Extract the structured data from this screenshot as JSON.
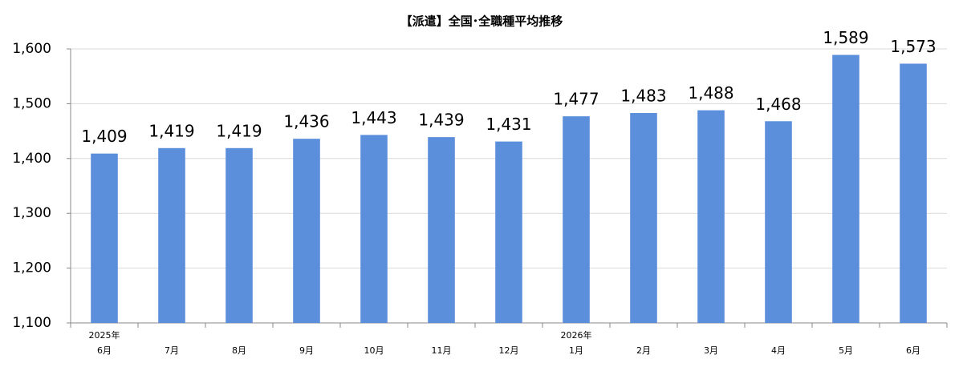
{
  "chart_data": {
    "type": "bar",
    "title": "【派遣】全国･全職種平均推移",
    "categories": [
      "6月",
      "7月",
      "8月",
      "9月",
      "10月",
      "11月",
      "12月",
      "1月",
      "2月",
      "3月",
      "4月",
      "5月",
      "6月"
    ],
    "category_years": [
      "2025年",
      null,
      null,
      null,
      null,
      null,
      null,
      "2026年",
      null,
      null,
      null,
      null,
      null
    ],
    "values": [
      1409,
      1419,
      1419,
      1436,
      1443,
      1439,
      1431,
      1477,
      1483,
      1488,
      1468,
      1589,
      1573
    ],
    "value_labels": [
      "1,409",
      "1,419",
      "1,419",
      "1,436",
      "1,443",
      "1,439",
      "1,431",
      "1,477",
      "1,483",
      "1,488",
      "1,468",
      "1,589",
      "1,573"
    ],
    "color": "#5b8fdc",
    "ylim": [
      1100,
      1600
    ],
    "yticks": [
      {
        "value": 1100,
        "label": "1,100"
      },
      {
        "value": 1200,
        "label": "1,200"
      },
      {
        "value": 1300,
        "label": "1,300"
      },
      {
        "value": 1400,
        "label": "1,400"
      },
      {
        "value": 1500,
        "label": "1,500"
      },
      {
        "value": 1600,
        "label": "1,600"
      }
    ],
    "grid": true
  }
}
